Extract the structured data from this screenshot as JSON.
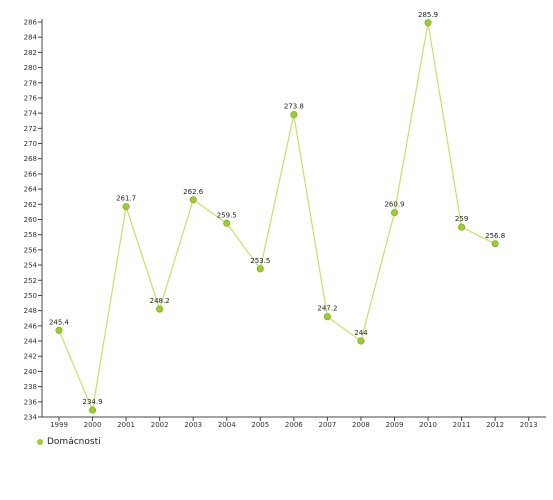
{
  "colors": {
    "series": "#c8e06a",
    "marker": "#9ccc2e",
    "marker_stroke": "#7aa51c",
    "axis": "#444444"
  },
  "chart_data": {
    "type": "line",
    "title": "",
    "xlabel": "",
    "ylabel": "",
    "categories": [
      "1999",
      "2000",
      "2001",
      "2002",
      "2003",
      "2004",
      "2005",
      "2006",
      "2007",
      "2008",
      "2009",
      "2010",
      "2011",
      "2012",
      "2013"
    ],
    "series": [
      {
        "name": "Domácnosti",
        "values": [
          245.4,
          234.9,
          261.7,
          248.2,
          262.6,
          259.5,
          253.5,
          273.8,
          247.2,
          244,
          260.9,
          285.9,
          259,
          256.8,
          null
        ],
        "labels": [
          "245.4",
          "234.9",
          "261.7",
          "248.2",
          "262.6",
          "259.5",
          "253.5",
          "273.8",
          "247.2",
          "244",
          "260.9",
          "285.9",
          "259",
          "256.8",
          ""
        ]
      }
    ],
    "ylim": [
      234,
      286
    ],
    "ytick_step": 2,
    "grid": false,
    "legend": "bottom-left"
  }
}
